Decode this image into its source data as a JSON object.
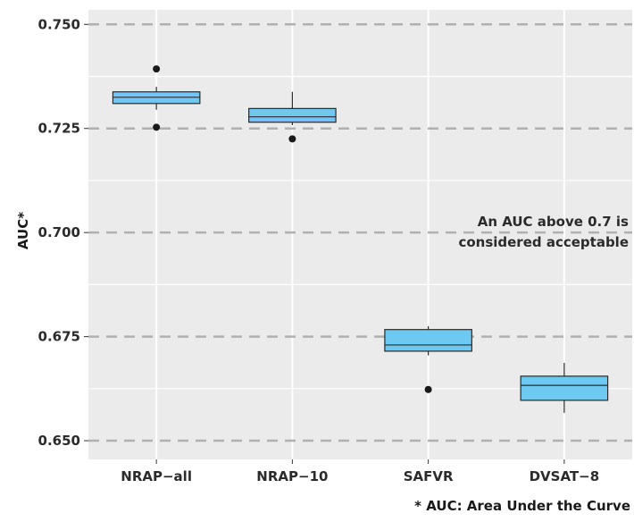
{
  "chart_data": {
    "type": "box",
    "ylabel": "AUC*",
    "xlabel": "",
    "ylim": [
      0.6455,
      0.7535
    ],
    "yticks": [
      "0.650",
      "0.675",
      "0.700",
      "0.725",
      "0.750"
    ],
    "categories": [
      "NRAP−all",
      "NRAP−10",
      "SAFVR",
      "DVSAT−8"
    ],
    "boxes": [
      {
        "category": "NRAP−all",
        "whisker_low": 0.7295,
        "q1": 0.731,
        "median": 0.7325,
        "q3": 0.7338,
        "whisker_high": 0.735,
        "outliers": [
          0.7393,
          0.7253
        ]
      },
      {
        "category": "NRAP−10",
        "whisker_low": 0.7258,
        "q1": 0.7265,
        "median": 0.7278,
        "q3": 0.7298,
        "whisker_high": 0.7338,
        "outliers": [
          0.7225
        ]
      },
      {
        "category": "SAFVR",
        "whisker_low": 0.6705,
        "q1": 0.6715,
        "median": 0.673,
        "q3": 0.6767,
        "whisker_high": 0.6775,
        "outliers": [
          0.6623
        ]
      },
      {
        "category": "DVSAT−8",
        "whisker_low": 0.6567,
        "q1": 0.6597,
        "median": 0.6633,
        "q3": 0.6655,
        "whisker_high": 0.6687,
        "outliers": []
      }
    ],
    "reference_lines": [
      0.65,
      0.675,
      0.7,
      0.725,
      0.75
    ],
    "grid": true,
    "annotation": "An AUC above 0.7 is\nconsidered acceptable",
    "footnote": "* AUC: Area Under the Curve",
    "colors": {
      "box_fill": "#6ec9f2",
      "box_stroke": "#2a2a2a",
      "panel": "#ebebeb",
      "grid_minor": "#ffffff",
      "ref_line": "#b0b0b0",
      "point": "#1a1a1a"
    }
  }
}
